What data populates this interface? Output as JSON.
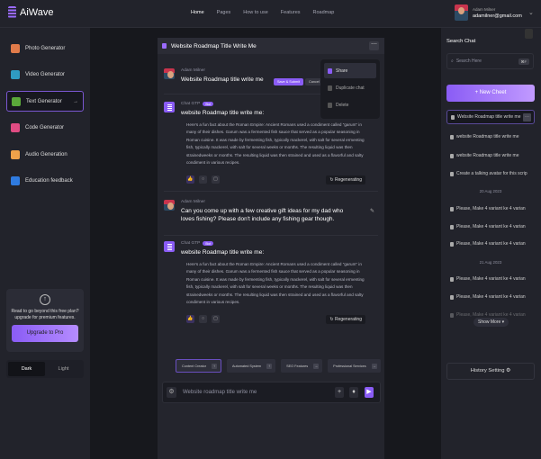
{
  "brand": "AiWave",
  "nav": [
    "Home",
    "Pages",
    "How to use",
    "Features",
    "Roadmap"
  ],
  "user": {
    "name": "Adam Milner",
    "email": "adamilner@gmail.com"
  },
  "tools": [
    {
      "label": "Photo Generator",
      "color": "#e07b4a"
    },
    {
      "label": "Video Generator",
      "color": "#2f9bc2"
    },
    {
      "label": "Text Generator",
      "color": "#5aa83a"
    },
    {
      "label": "Code Generator",
      "color": "#e04c83"
    },
    {
      "label": "Audio Generation",
      "color": "#f0a24a"
    },
    {
      "label": "Education feedback",
      "color": "#2f7be0"
    }
  ],
  "upgrade": {
    "text": "Read to go beyond this free plan? upgrade for premium features.",
    "button": "Upgrade to Pro"
  },
  "theme": {
    "dark": "Dark",
    "light": "Light"
  },
  "chat": {
    "title": "Website Roadmap Title Write Me",
    "messages": [
      {
        "author": "Adam Milner",
        "text": "Website Roadmap title write me",
        "save": "Save & Submit",
        "cancel": "Cancel"
      },
      {
        "author": "Chat GTP",
        "badge": "Bot",
        "title": "website Roadmap title write me:",
        "body": "Here's a fun fact about the Roman Empire: Ancient Romans used a condiment called \"garum\" in many of their dishes. Garum was a fermented fish sauce that served as a popular seasoning in Roman cuisine. It was made by fermenting fish, typically mackerel, with salt for several ermenting fish, typically mackerel, with salt for several weeks or months. The resulting liquid was then strainedweeks or months. The resulting liquid was then strained and used as a flavorful and salty condiment in various recipes.",
        "regen": "Regenerating"
      },
      {
        "author": "Adam Milner",
        "text": "Can you come up with a few creative gift ideas for my dad who loves fishing? Please don't include any fishing gear though."
      },
      {
        "author": "Chat GTP",
        "badge": "Bot",
        "title": "website Roadmap title write me:",
        "body": "Here's a fun fact about the Roman Empire: Ancient Romans used a condiment called \"garum\" in many of their dishes. Garum was a fermented fish sauce that served as a popular seasoning in Roman cuisine. It was made by fermenting fish, typically mackerel, with salt for several ermenting fish, typically mackerel, with salt for several weeks or months. The resulting liquid was then strainedweeks or months. The resulting liquid was then strained and used as a flavorful and salty condiment in various recipes.",
        "regen": "Regenerating"
      }
    ],
    "menu": [
      "Share",
      "Duplicate chat",
      "Delete"
    ],
    "chips": [
      "Content Creator",
      "Automated System",
      "SEO Features",
      "Professional Services"
    ],
    "input_placeholder": "Website roadmap title write me"
  },
  "right": {
    "search_title": "Search Chat",
    "search_placeholder": "Search Here",
    "shortcut": "⌘F",
    "new_chat": "+ New Cheet",
    "history": [
      "Website Roadmap title write me",
      "website Roadmap title write me",
      "website Roadmap title write me",
      "Create a talking avatar for this scrip"
    ],
    "date1": "20 Aug 2023",
    "group1": [
      "Please, Make 4 variant ke 4 varian",
      "Please, Make 4 variant ke 4 varian",
      "Please, Make 4 variant ke 4 varian"
    ],
    "date2": "21 Aug 2023",
    "group2": [
      "Please, Make 4 variant ke 4 varian",
      "Please, Make 4 variant ke 4 varian",
      "Please, Make 4 variant ke 4 varian"
    ],
    "show_more": "Show More ▾",
    "history_setting": "History Setting ⚙"
  }
}
